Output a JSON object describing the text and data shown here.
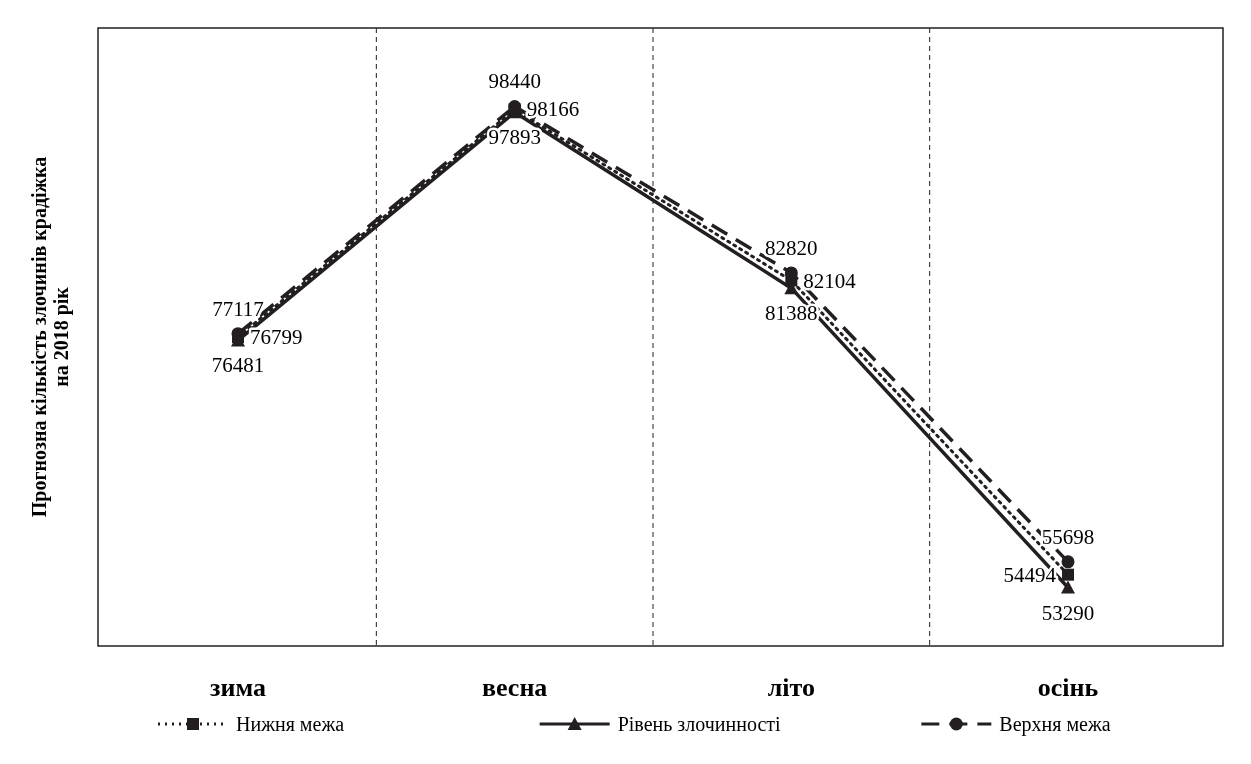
{
  "chart_data": {
    "type": "line",
    "ylabel": "Прогнозна кількість злочинів крадіжка\nна 2018 рік",
    "categories": [
      "зима",
      "весна",
      "літо",
      "осінь"
    ],
    "series": [
      {
        "name": "Нижня межа",
        "color": "#231f20",
        "marker": "square",
        "line_style": "dotted",
        "values": [
          76799,
          98166,
          82104,
          54494
        ]
      },
      {
        "name": "Рівень злочинності",
        "color": "#231f20",
        "marker": "triangle",
        "line_style": "solid",
        "values": [
          76481,
          97893,
          81388,
          53290
        ]
      },
      {
        "name": "Верхня межа",
        "color": "#231f20",
        "marker": "circle",
        "line_style": "dashed",
        "values": [
          77117,
          98440,
          82820,
          55698
        ]
      }
    ],
    "data_labels": true,
    "legend": "bottom",
    "tick_labels": "x"
  }
}
